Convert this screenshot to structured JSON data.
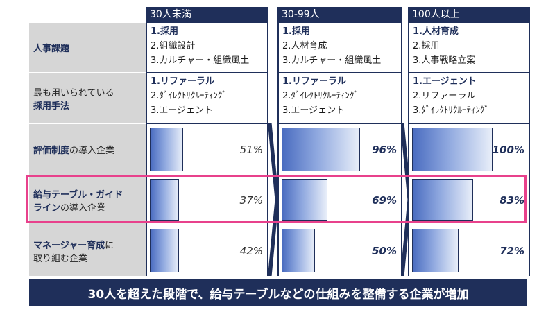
{
  "columns": [
    {
      "header": "30人未満"
    },
    {
      "header": "30-99人"
    },
    {
      "header": "100人以上"
    }
  ],
  "rows": {
    "issues": {
      "label_bold": "人事課題"
    },
    "methods": {
      "label_normal": "最も用いられている",
      "label_bold": "採用手法"
    },
    "eval": {
      "label_bold": "評価制度",
      "label_normal": "の導入企業"
    },
    "pay_table": {
      "label_bold_1": "給与テーブル・ガイド",
      "label_bold_2": "ライン",
      "label_normal": "の導入企業"
    },
    "manager": {
      "label_bold": "マネージャー育成",
      "label_normal_1": "に",
      "label_normal_2": "取り組む企業"
    }
  },
  "issues_cells": [
    [
      "1.採用",
      "2.組織設計",
      "3.カルチャー・組織風土"
    ],
    [
      "1.採用",
      "2.人材育成",
      "3.カルチャー・組織風土"
    ],
    [
      "1.人材育成",
      "2.採用",
      "3.人事戦略立案"
    ]
  ],
  "methods_cells": [
    [
      "1.リファーラル",
      "2.ﾀﾞｲﾚｸﾄﾘｸﾙｰﾃｨﾝｸﾞ",
      "3.エージェント"
    ],
    [
      "1.リファーラル",
      "2.ﾀﾞｲﾚｸﾄﾘｸﾙｰﾃｨﾝｸﾞ",
      "3.エージェント"
    ],
    [
      "1.エージェント",
      "2.リファーラル",
      "3.ﾀﾞｲﾚｸﾄﾘｸﾙｰﾃｨﾝｸﾞ"
    ]
  ],
  "chart_data": {
    "type": "table",
    "unit": "%",
    "categories": [
      "30人未満",
      "30-99人",
      "100人以上"
    ],
    "series": [
      {
        "name": "評価制度の導入企業",
        "values": [
          51,
          96,
          100
        ],
        "labels": [
          "51%",
          "96%",
          "100%"
        ]
      },
      {
        "name": "給与テーブル・ガイドラインの導入企業",
        "values": [
          37,
          69,
          83
        ],
        "labels": [
          "37%",
          "69%",
          "83%"
        ]
      },
      {
        "name": "マネージャー育成に取り組む企業",
        "values": [
          42,
          50,
          72
        ],
        "labels": [
          "42%",
          "50%",
          "72%"
        ]
      }
    ],
    "highlighted_series": "給与テーブル・ガイドラインの導入企業"
  },
  "banner": "30人を超えた段階で、給与テーブルなどの仕組みを整備する企業が増加",
  "colors": {
    "navy": "#1f2f5a",
    "highlight": "#e8418c",
    "label_bg": "#d6d6d6"
  }
}
